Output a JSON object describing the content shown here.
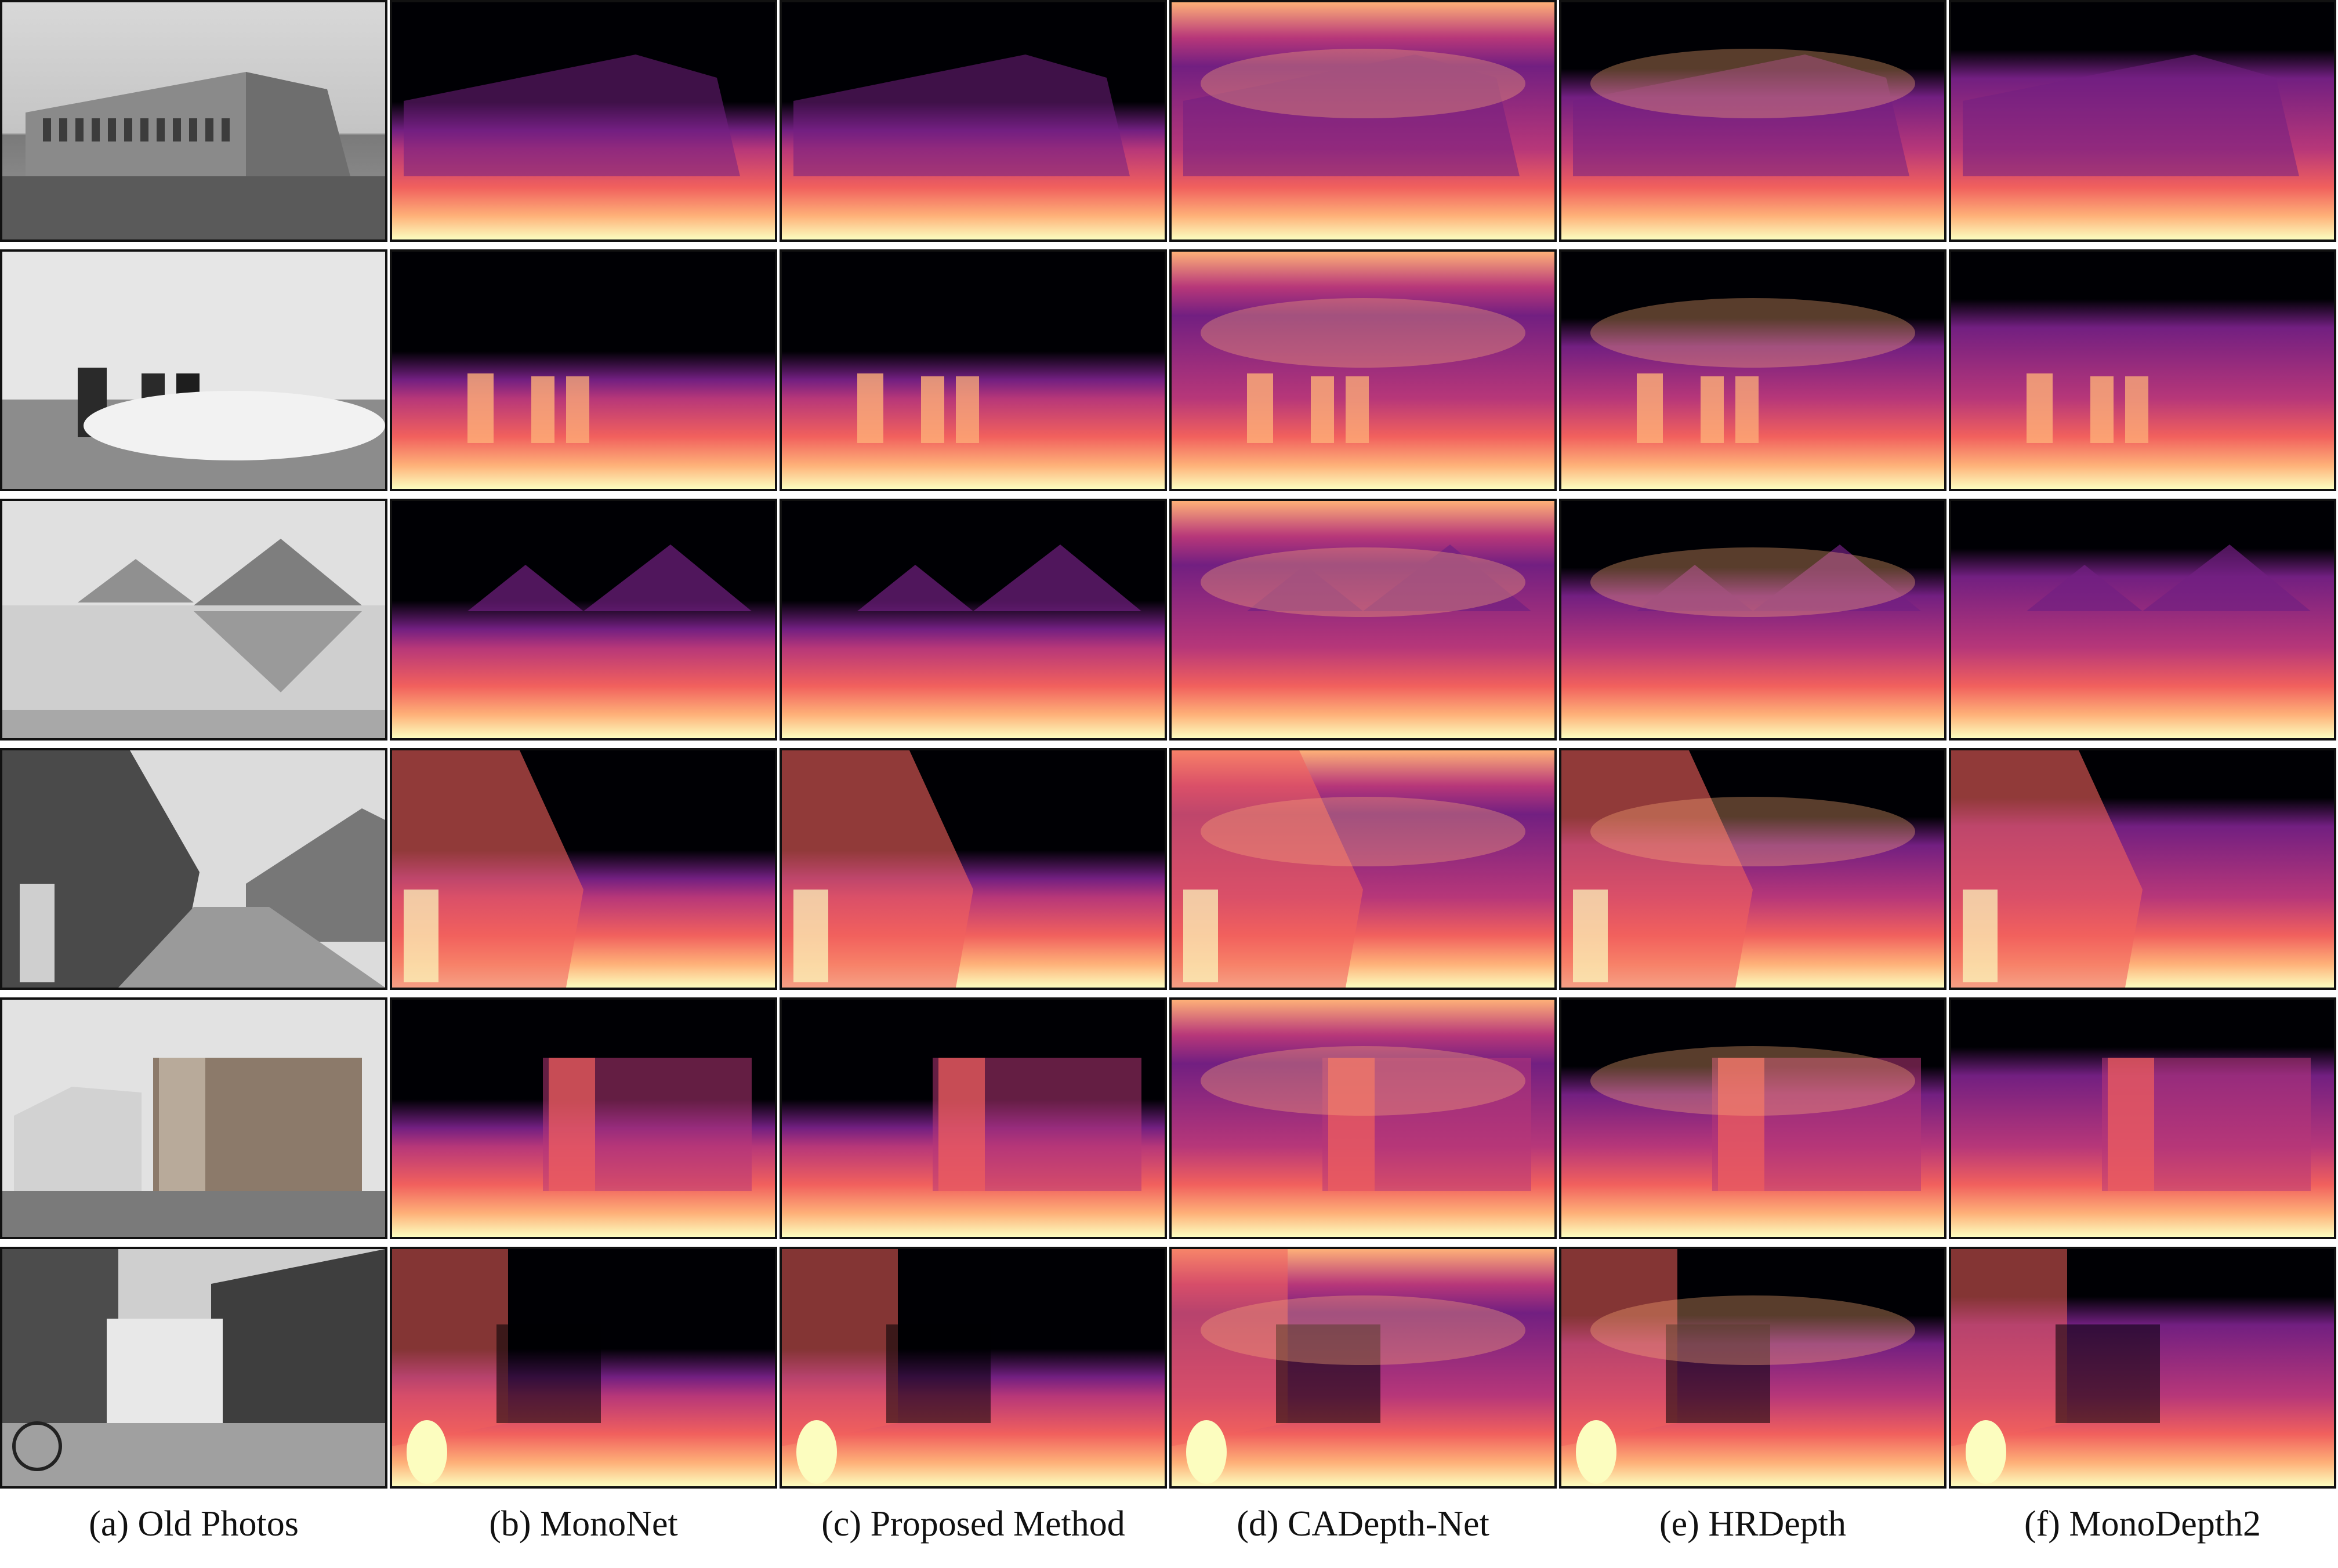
{
  "figure": {
    "captions": [
      "(a) Old Photos",
      "(b) MonoNet",
      "(c) Proposed Method",
      "(d) CADepth-Net",
      "(e) HRDepth",
      "(f) MonoDepth2"
    ],
    "rows": [
      {
        "scene": "building"
      },
      {
        "scene": "field-with-people"
      },
      {
        "scene": "pyramids"
      },
      {
        "scene": "street-with-houses"
      },
      {
        "scene": "barn-and-tower"
      },
      {
        "scene": "narrow-street"
      }
    ],
    "colormap": {
      "name": "magma",
      "stops": [
        "#000004",
        "#2c115f",
        "#721f81",
        "#b73779",
        "#f1605d",
        "#feb078",
        "#fcfdbf"
      ]
    }
  }
}
